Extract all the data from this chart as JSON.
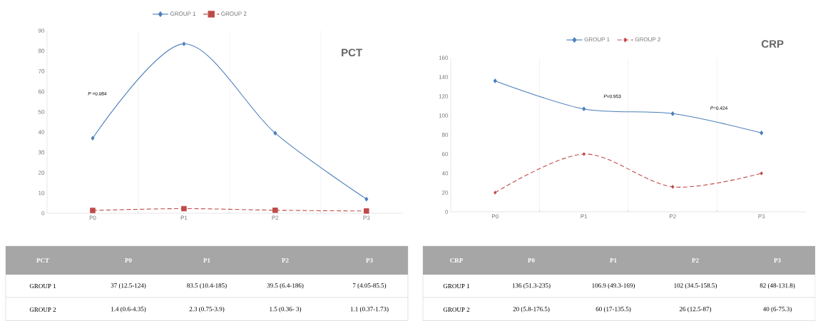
{
  "chart_data": [
    {
      "type": "line",
      "title": "PCT",
      "categories": [
        "P0",
        "P1",
        "P2",
        "P3"
      ],
      "ylim": [
        0,
        90
      ],
      "yticks": [
        0,
        10,
        20,
        30,
        40,
        50,
        60,
        70,
        80,
        90
      ],
      "grid": "x",
      "legend": "top",
      "annotations": [
        "*P* =0.084"
      ],
      "series": [
        {
          "name": "GROUP 1",
          "color": "#4a7ebb",
          "marker": "diamond",
          "line_style": "solid",
          "values": [
            37,
            83.5,
            39.5,
            7
          ],
          "value_labels": [
            "37 (12.5-124)",
            "83.5 (10.4-185)",
            "39.5 (6.4-186)",
            "7 (4.05-85.5)"
          ]
        },
        {
          "name": "GROUP 2",
          "color": "#be4b48",
          "marker": "square",
          "line_style": "dashed",
          "values": [
            1.4,
            2.3,
            1.5,
            1.1
          ],
          "value_labels": [
            "1.4 (0.6-4.35)",
            "2.3 (0.75-3.9)",
            "1.5 (0.36- 3)",
            "1.1 (0.37-1.73)"
          ]
        }
      ]
    },
    {
      "type": "line",
      "title": "CRP",
      "categories": [
        "P0",
        "P1",
        "P2",
        "P3"
      ],
      "ylim": [
        0,
        160
      ],
      "yticks": [
        0,
        20,
        40,
        60,
        80,
        100,
        120,
        140,
        160
      ],
      "grid": "x",
      "legend": "top",
      "annotations": [
        "*P*=0.953",
        "*P*=0.424"
      ],
      "series": [
        {
          "name": "GROUP 1",
          "color": "#4a7ebb",
          "marker": "diamond",
          "line_style": "solid",
          "values": [
            136,
            106.9,
            102,
            82
          ],
          "value_labels": [
            "136 (51.3-235)",
            "106.9 (49.3-169)",
            "102 (34.5-158.5)",
            "82 (48-131.8)"
          ]
        },
        {
          "name": "GROUP 2",
          "color": "#be4b48",
          "marker": "diamond",
          "line_style": "dashed",
          "values": [
            20,
            60,
            26,
            40
          ],
          "value_labels": [
            "20 (5.8-176.5)",
            "60 (17-135.5)",
            "26 (12.5-87)",
            "40 (6-75.3)"
          ]
        }
      ]
    }
  ]
}
